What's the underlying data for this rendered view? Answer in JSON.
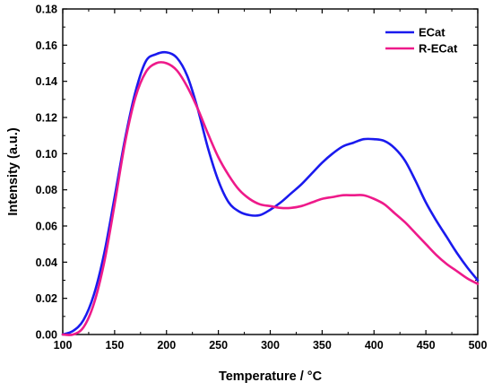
{
  "chart_data": {
    "type": "line",
    "xlabel": "Temperature / °C",
    "ylabel": "Intensity (a.u.)",
    "xlim": [
      100,
      500
    ],
    "ylim": [
      0,
      0.18
    ],
    "x_ticks": [
      "100",
      "150",
      "200",
      "250",
      "300",
      "350",
      "400",
      "450",
      "500"
    ],
    "y_ticks": [
      "0.00",
      "0.02",
      "0.04",
      "0.06",
      "0.08",
      "0.10",
      "0.12",
      "0.14",
      "0.16",
      "0.18"
    ],
    "grid": false,
    "legend_position": "top-right",
    "x": [
      100,
      110,
      120,
      130,
      140,
      150,
      160,
      170,
      180,
      190,
      200,
      210,
      220,
      230,
      240,
      250,
      260,
      270,
      280,
      290,
      300,
      310,
      320,
      330,
      340,
      350,
      360,
      370,
      380,
      390,
      400,
      410,
      420,
      430,
      440,
      450,
      460,
      470,
      480,
      490,
      500
    ],
    "series": [
      {
        "name": "ECat",
        "color": "#1a1aee",
        "values": [
          0.0,
          0.002,
          0.008,
          0.022,
          0.045,
          0.076,
          0.108,
          0.134,
          0.151,
          0.155,
          0.156,
          0.153,
          0.143,
          0.125,
          0.103,
          0.085,
          0.073,
          0.068,
          0.066,
          0.066,
          0.069,
          0.073,
          0.078,
          0.083,
          0.089,
          0.095,
          0.1,
          0.104,
          0.106,
          0.108,
          0.108,
          0.107,
          0.103,
          0.096,
          0.085,
          0.073,
          0.063,
          0.054,
          0.045,
          0.037,
          0.03
        ]
      },
      {
        "name": "R-ECat",
        "color": "#ee1a8a",
        "values": [
          0.0,
          0.0,
          0.004,
          0.017,
          0.04,
          0.072,
          0.106,
          0.131,
          0.145,
          0.15,
          0.15,
          0.146,
          0.137,
          0.125,
          0.111,
          0.098,
          0.088,
          0.08,
          0.075,
          0.072,
          0.071,
          0.07,
          0.07,
          0.071,
          0.073,
          0.075,
          0.076,
          0.077,
          0.077,
          0.077,
          0.075,
          0.072,
          0.067,
          0.062,
          0.056,
          0.05,
          0.044,
          0.039,
          0.035,
          0.031,
          0.028
        ]
      }
    ]
  }
}
